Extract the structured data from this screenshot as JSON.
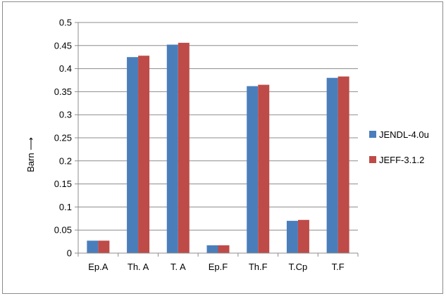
{
  "chart_data": {
    "type": "bar",
    "categories": [
      "Ep.A",
      "Th. A",
      "T. A",
      "Ep.F",
      "Th.F",
      "T.Cp",
      "T.F"
    ],
    "series": [
      {
        "name": "JENDL-4.0u",
        "color": "#4a7ebb",
        "values": [
          0.027,
          0.425,
          0.452,
          0.017,
          0.362,
          0.07,
          0.38
        ]
      },
      {
        "name": "JEFF-3.1.2",
        "color": "#be4b48",
        "values": [
          0.027,
          0.428,
          0.456,
          0.017,
          0.365,
          0.072,
          0.383
        ]
      }
    ],
    "ylabel": "Barn ⟶",
    "ylim": [
      0,
      0.5
    ],
    "yticks": [
      "0",
      "0.05",
      "0.1",
      "0.15",
      "0.2",
      "0.25",
      "0.3",
      "0.35",
      "0.4",
      "0.45",
      "0.5"
    ],
    "grid": true,
    "legend_position": "right"
  }
}
